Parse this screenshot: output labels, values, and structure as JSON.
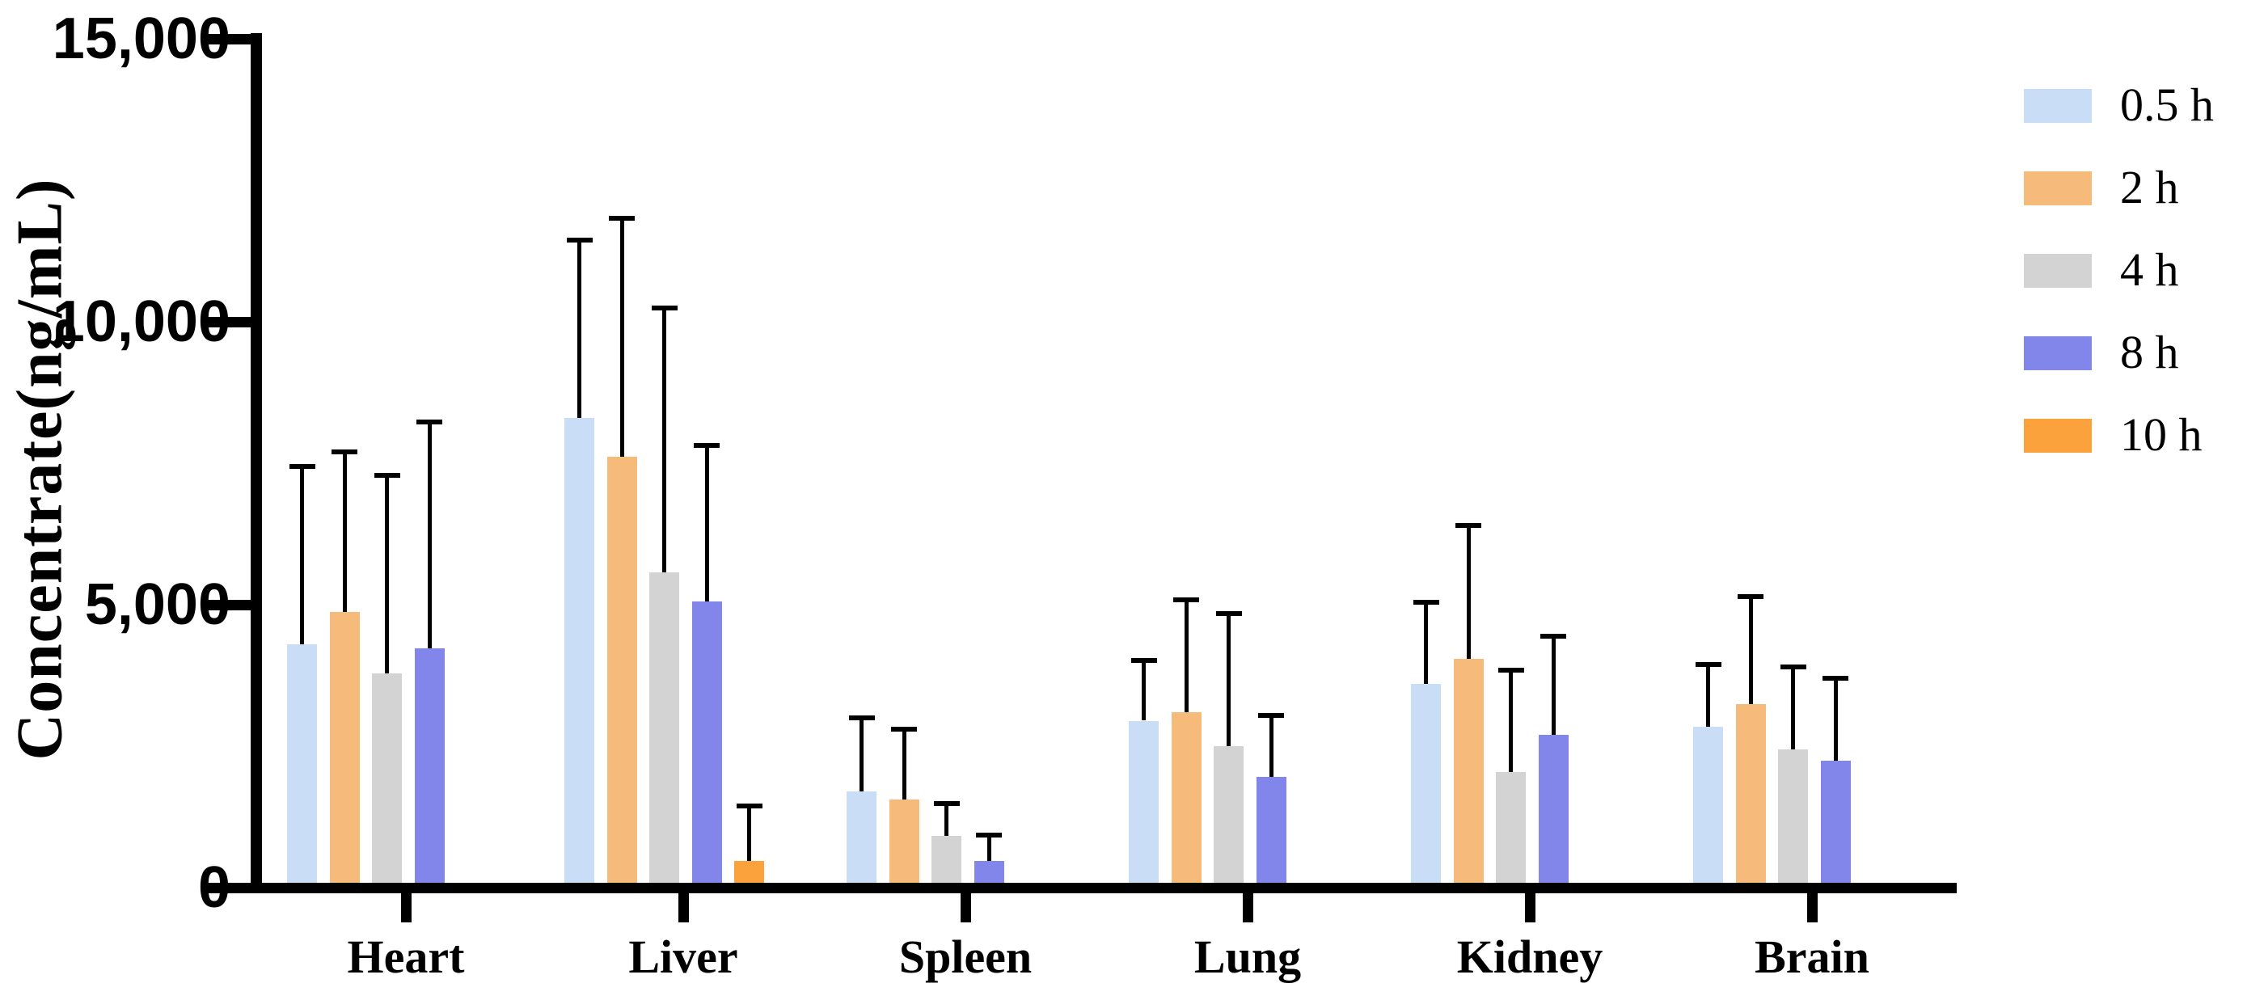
{
  "chart_data": {
    "type": "bar",
    "title": "",
    "ylabel": "Concentrate(ng/mL)",
    "xlabel": "",
    "categories": [
      "Heart",
      "Liver",
      "Spleen",
      "Lung",
      "Kidney",
      "Brain"
    ],
    "series": [
      {
        "name": "0.5 h",
        "color": "#C9DDF6",
        "values": [
          4300,
          8300,
          1700,
          2950,
          3600,
          2850
        ],
        "errors_upper": [
          3150,
          3150,
          1300,
          1070,
          1450,
          1100
        ]
      },
      {
        "name": "2 h",
        "color": "#F6BA7B",
        "values": [
          4870,
          7620,
          1560,
          3100,
          4050,
          3250
        ],
        "errors_upper": [
          2830,
          4210,
          1240,
          1990,
          2350,
          1900
        ]
      },
      {
        "name": "4 h",
        "color": "#D3D3D3",
        "values": [
          3790,
          5570,
          920,
          2500,
          2050,
          2450
        ],
        "errors_upper": [
          3500,
          4670,
          570,
          2350,
          1800,
          1450
        ]
      },
      {
        "name": "8 h",
        "color": "#8286EA",
        "values": [
          4230,
          5060,
          470,
          1960,
          2700,
          2250
        ],
        "errors_upper": [
          4000,
          2760,
          460,
          1090,
          1750,
          1450
        ]
      },
      {
        "name": "10 h",
        "color": "#FCA23D",
        "values": [
          null,
          470,
          null,
          null,
          null,
          null
        ],
        "errors_upper": [
          null,
          980,
          null,
          null,
          null,
          null
        ]
      }
    ],
    "ylim": [
      0,
      15000
    ],
    "yticks": [
      0,
      5000,
      10000,
      15000
    ],
    "ytick_labels": [
      "0",
      "5,000",
      "10,000",
      "15,000"
    ],
    "grid": "off",
    "legend_position": "right",
    "error_bars": "upper-only",
    "axis_color": "#000000"
  }
}
